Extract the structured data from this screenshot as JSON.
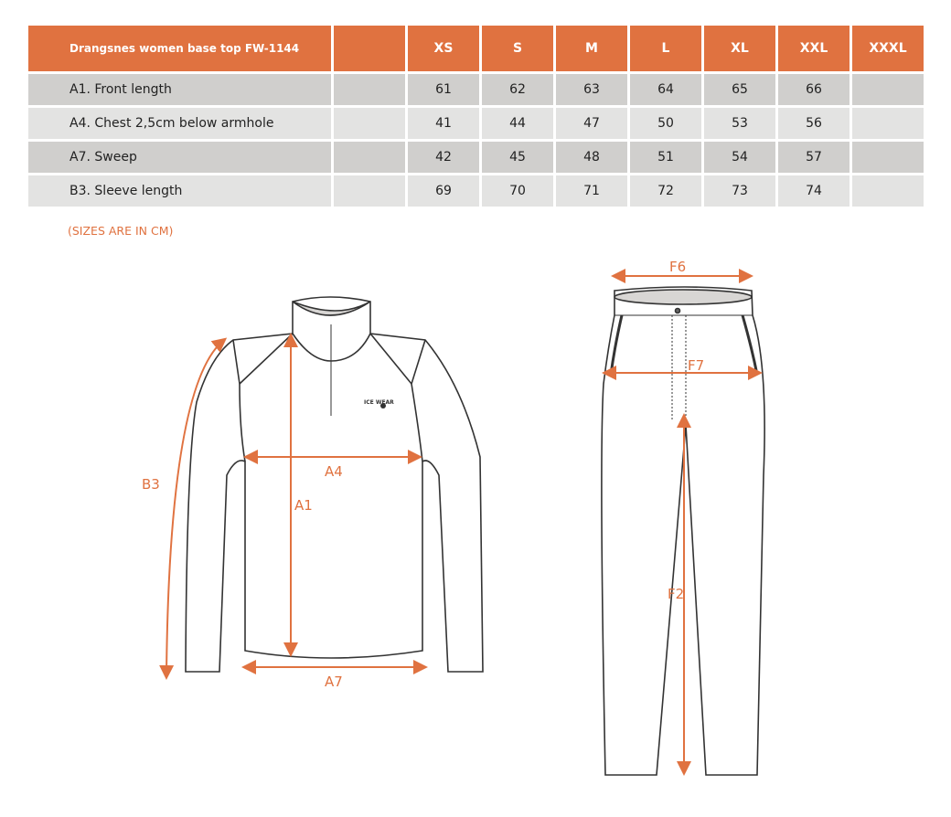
{
  "table": {
    "title": "Drangsnes women base top FW-1144",
    "sizes": [
      "XS",
      "S",
      "M",
      "L",
      "XL",
      "XXL",
      "XXXL"
    ],
    "rows": [
      {
        "label": "A1. Front length",
        "values": [
          "61",
          "62",
          "63",
          "64",
          "65",
          "66",
          ""
        ]
      },
      {
        "label": "A4. Chest 2,5cm below armhole",
        "values": [
          "41",
          "44",
          "47",
          "50",
          "53",
          "56",
          ""
        ]
      },
      {
        "label": "A7. Sweep",
        "values": [
          "42",
          "45",
          "48",
          "51",
          "54",
          "57",
          ""
        ]
      },
      {
        "label": "B3. Sleeve length",
        "values": [
          "69",
          "70",
          "71",
          "72",
          "73",
          "74",
          ""
        ]
      }
    ]
  },
  "note": "(SIZES ARE IN CM)",
  "diagram": {
    "top_labels": {
      "b3": "B3",
      "a4": "A4",
      "a1": "A1",
      "a7": "A7"
    },
    "pants_labels": {
      "f6": "F6",
      "f7": "F7",
      "f2": "F2"
    },
    "logo": "ICE WEAR",
    "accent_color": "#E07240"
  }
}
